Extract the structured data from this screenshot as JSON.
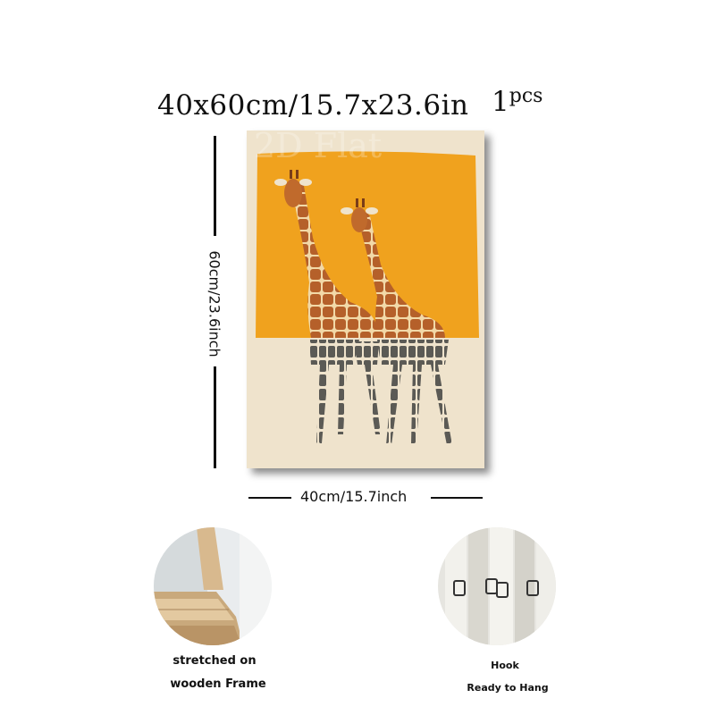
{
  "title": {
    "size_text": "40x60cm/15.7x23.6in",
    "qty_number": "1",
    "qty_unit": "pcs"
  },
  "watermark": "2D Flat",
  "dimensions": {
    "height_label": "60cm/23.6inch",
    "width_label": "40cm/15.7inch"
  },
  "features": [
    {
      "line1": "stretched on",
      "line2": "wooden Frame"
    },
    {
      "line1": "Hook",
      "line2": "Ready to Hang"
    }
  ],
  "colors": {
    "orange": "#f0a21e",
    "cream": "#efe3cc",
    "giraffe": "#b8642a",
    "legs": "#5b5a55"
  }
}
